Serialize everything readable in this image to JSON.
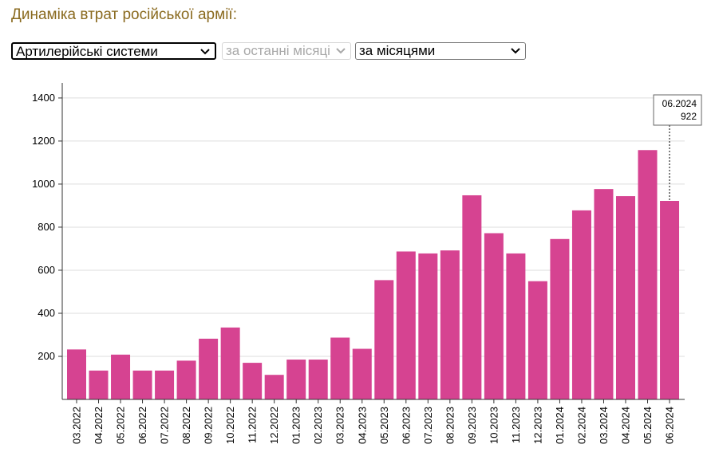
{
  "page": {
    "title": "Динаміка втрат російської армії:"
  },
  "controls": {
    "metric_select": {
      "value": "Артилерійські системи",
      "icon": "chevron-down-icon"
    },
    "period_select": {
      "value": "за останні місяці",
      "disabled": true,
      "icon": "chevron-down-icon"
    },
    "grouping_select": {
      "value": "за місяцями",
      "icon": "chevron-down-icon"
    }
  },
  "colors": {
    "bar": "#d64391",
    "title": "#8a6a1f",
    "grid": "#dddddd",
    "axis": "#333333"
  },
  "chart_data": {
    "type": "bar",
    "title": "",
    "xlabel": "",
    "ylabel": "",
    "ylim": [
      0,
      1470
    ],
    "y_ticks": [
      200,
      400,
      600,
      800,
      1000,
      1200,
      1400
    ],
    "grid": "horizontal",
    "categories": [
      "03.2022",
      "04.2022",
      "05.2022",
      "06.2022",
      "07.2022",
      "08.2022",
      "09.2022",
      "10.2022",
      "11.2022",
      "12.2022",
      "01.2023",
      "02.2023",
      "03.2023",
      "04.2023",
      "05.2023",
      "06.2023",
      "07.2023",
      "08.2023",
      "09.2023",
      "10.2023",
      "11.2023",
      "12.2023",
      "01.2024",
      "02.2024",
      "03.2024",
      "04.2024",
      "05.2024",
      "06.2024"
    ],
    "values": [
      232,
      134,
      208,
      134,
      134,
      180,
      282,
      334,
      170,
      114,
      185,
      185,
      287,
      235,
      554,
      687,
      678,
      692,
      948,
      772,
      678,
      549,
      745,
      878,
      977,
      944,
      1158,
      922
    ],
    "tooltip": {
      "category": "06.2024",
      "value": "922"
    }
  }
}
